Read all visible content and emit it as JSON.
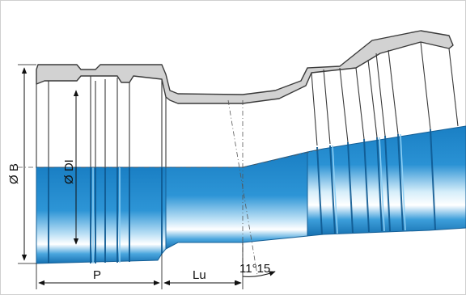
{
  "labels": {
    "outer_diameter": "Ø B",
    "inner_diameter": "Ø DI",
    "socket_depth": "P",
    "useful_length": "Lu",
    "bend_angle": "11°15"
  },
  "colors": {
    "pipe_blue": "#1f87cc",
    "pipe_blue_dark": "#176aa6",
    "pipe_highlight": "#ffffff",
    "wall_gray": "#d2d2d2",
    "outline": "#3a3a3a",
    "dimension_line": "#111111"
  }
}
